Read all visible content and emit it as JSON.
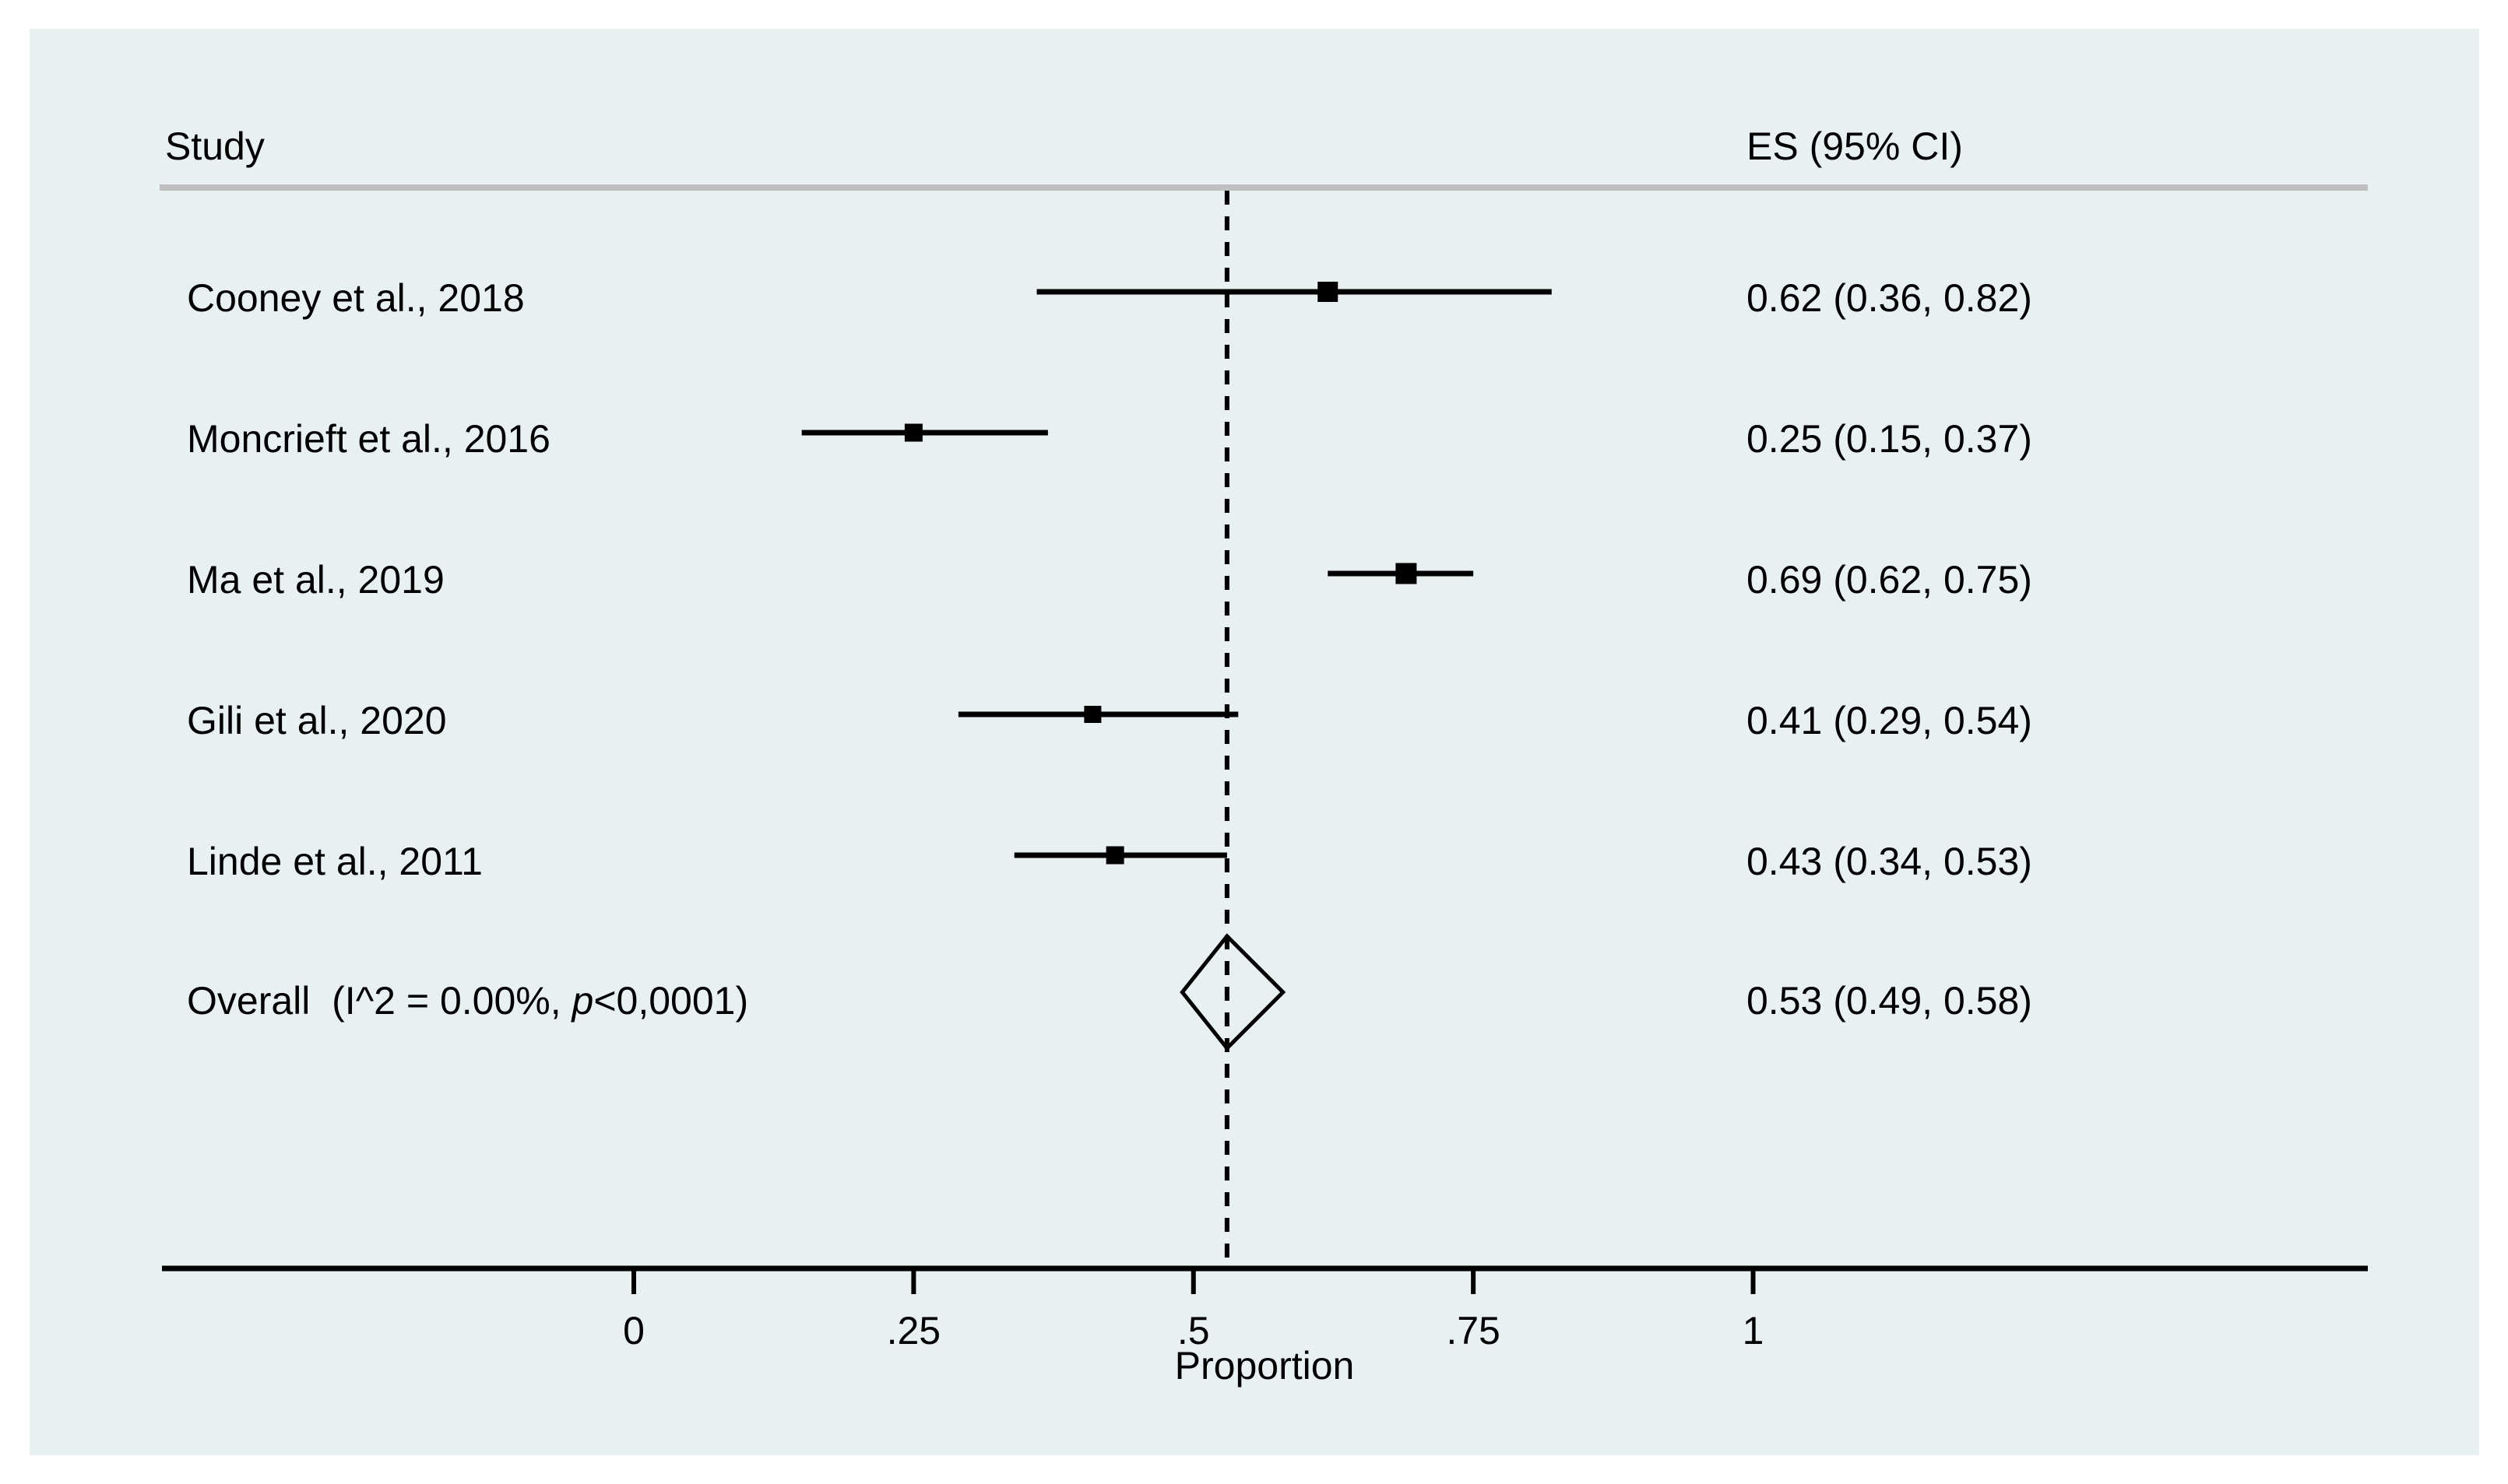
{
  "colors": {
    "panel_background": "#e8f0f2",
    "header_rule_gray": "#c0c0c0",
    "ink": "#000000"
  },
  "header": {
    "study_col": "Study",
    "es_col": "ES (95% CI)"
  },
  "chart_data": {
    "type": "forest",
    "title": "",
    "xlabel": "Proportion",
    "x_axis": {
      "min": 0,
      "max": 1,
      "ticks": [
        {
          "value": 0,
          "label": "0"
        },
        {
          "value": 0.25,
          "label": ".25"
        },
        {
          "value": 0.5,
          "label": ".5"
        },
        {
          "value": 0.75,
          "label": ".75"
        },
        {
          "value": 1,
          "label": "1"
        }
      ]
    },
    "studies": [
      {
        "label": "Cooney et al., 2018",
        "es": 0.62,
        "ci_lo": 0.36,
        "ci_hi": 0.82,
        "es_label": "0.62 (0.36, 0.82)",
        "marker_size": 26
      },
      {
        "label": "Moncrieft et al., 2016",
        "es": 0.25,
        "ci_lo": 0.15,
        "ci_hi": 0.37,
        "es_label": "0.25 (0.15, 0.37)",
        "marker_size": 23
      },
      {
        "label": "Ma et al., 2019",
        "es": 0.69,
        "ci_lo": 0.62,
        "ci_hi": 0.75,
        "es_label": "0.69 (0.62, 0.75)",
        "marker_size": 27
      },
      {
        "label": "Gili et al., 2020",
        "es": 0.41,
        "ci_lo": 0.29,
        "ci_hi": 0.54,
        "es_label": "0.41 (0.29, 0.54)",
        "marker_size": 22
      },
      {
        "label": "Linde et al., 2011",
        "es": 0.43,
        "ci_lo": 0.34,
        "ci_hi": 0.53,
        "es_label": "0.43 (0.34, 0.53)",
        "marker_size": 23
      }
    ],
    "overall": {
      "label_prefix": "Overall  (I^2 = 0.00%, ",
      "label_p": "p",
      "label_suffix": "<0,0001)",
      "es": 0.53,
      "ci_lo": 0.49,
      "ci_hi": 0.58,
      "es_label": "0.53 (0.49, 0.58)"
    },
    "layout_hints": {
      "grid": "off",
      "null_line": "dashed vertical at overall estimate",
      "legend": "none"
    }
  }
}
